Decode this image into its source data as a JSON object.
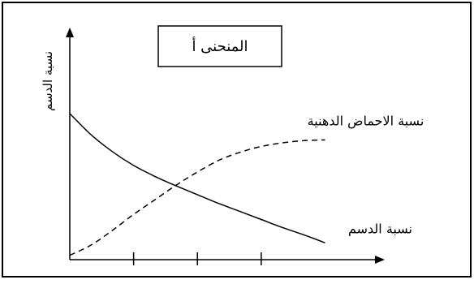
{
  "chart_data": {
    "type": "line",
    "title": "المنحنى أ",
    "ylabel": "نسبة الدسم",
    "xlabel": "",
    "x": [
      0,
      1,
      2,
      3,
      4,
      5,
      6,
      7,
      8,
      9,
      10,
      11,
      12
    ],
    "x_ticks": [
      3,
      6,
      9
    ],
    "xlim": [
      0,
      14.5
    ],
    "ylim": [
      0,
      10
    ],
    "grid": false,
    "legend": "direct labels",
    "series": [
      {
        "name": "نسبة الدسم",
        "style": "solid",
        "color": "#000000",
        "values": [
          10.0,
          8.55,
          7.4,
          6.45,
          5.7,
          5.05,
          4.45,
          3.85,
          3.3,
          2.75,
          2.2,
          1.7,
          1.15
        ]
      },
      {
        "name": "نسبة الاحماض الدهنية",
        "style": "dashed",
        "color": "#000000",
        "values": [
          0.3,
          1.0,
          2.0,
          3.1,
          4.1,
          5.1,
          6.0,
          6.8,
          7.35,
          7.75,
          8.0,
          8.15,
          8.2
        ]
      }
    ]
  }
}
